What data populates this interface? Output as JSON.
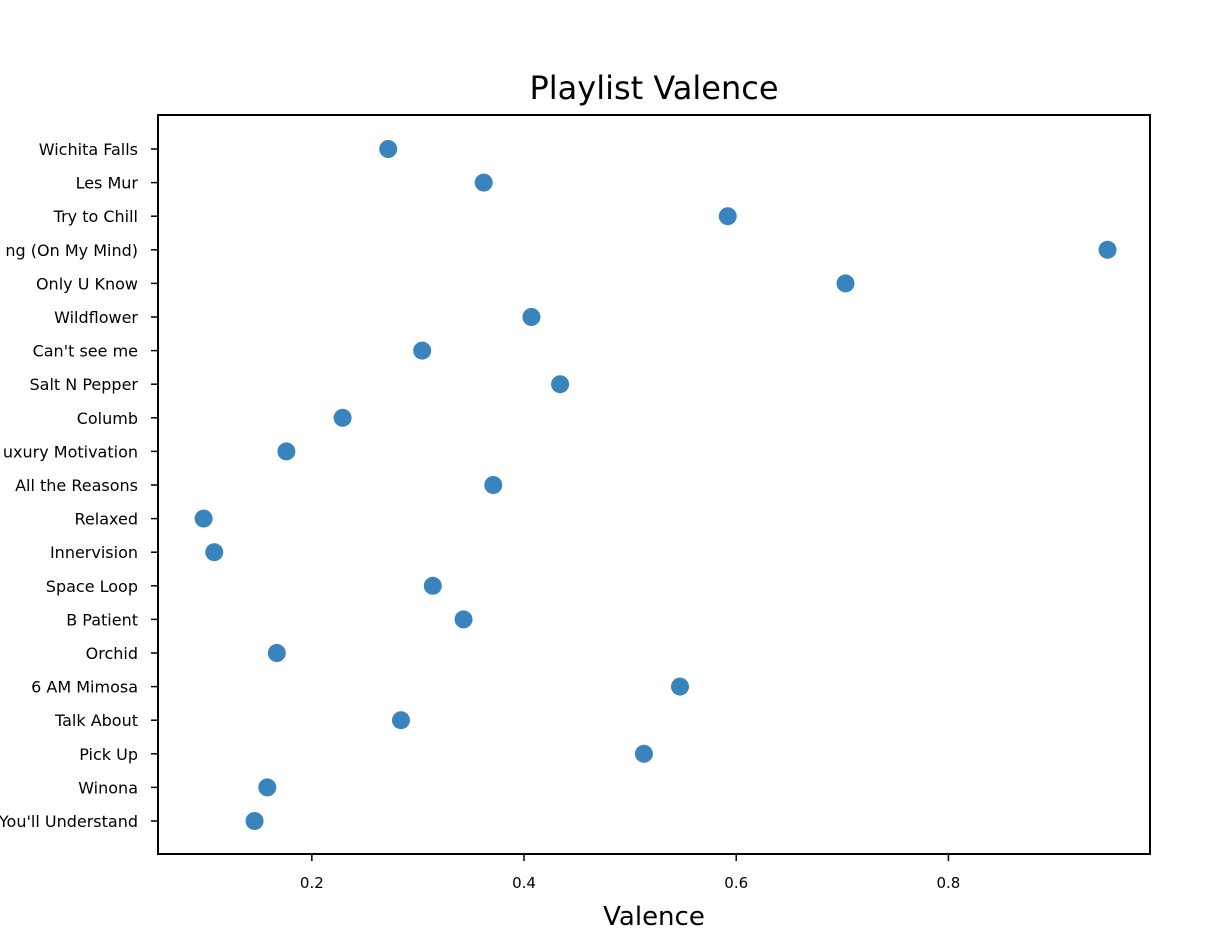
{
  "chart_data": {
    "type": "scatter",
    "title": "Playlist Valence",
    "xlabel": "Valence",
    "ylabel": "",
    "xlim": [
      0.055,
      0.99
    ],
    "x_ticks": [
      0.2,
      0.4,
      0.6,
      0.8
    ],
    "x_tick_labels": [
      "0.2",
      "0.4",
      "0.6",
      "0.8"
    ],
    "grid": false,
    "legend": "none",
    "marker_color": "#3a84be",
    "categories": [
      "Wichita Falls",
      "Les Mur",
      "Try to Chill",
      "ng (On My Mind)",
      "Only U Know",
      "Wildflower",
      "Can't see me",
      "Salt N Pepper",
      "Columb",
      "uxury Motivation",
      "All the Reasons",
      "Relaxed",
      "Innervision",
      "Space Loop",
      "B Patient",
      "Orchid",
      "6 AM Mimosa",
      "Talk About",
      "Pick Up",
      "Winona",
      "You'll Understand"
    ],
    "values": [
      0.272,
      0.362,
      0.592,
      0.95,
      0.703,
      0.407,
      0.304,
      0.434,
      0.229,
      0.176,
      0.371,
      0.098,
      0.108,
      0.314,
      0.343,
      0.167,
      0.547,
      0.284,
      0.513,
      0.158,
      0.146
    ]
  }
}
